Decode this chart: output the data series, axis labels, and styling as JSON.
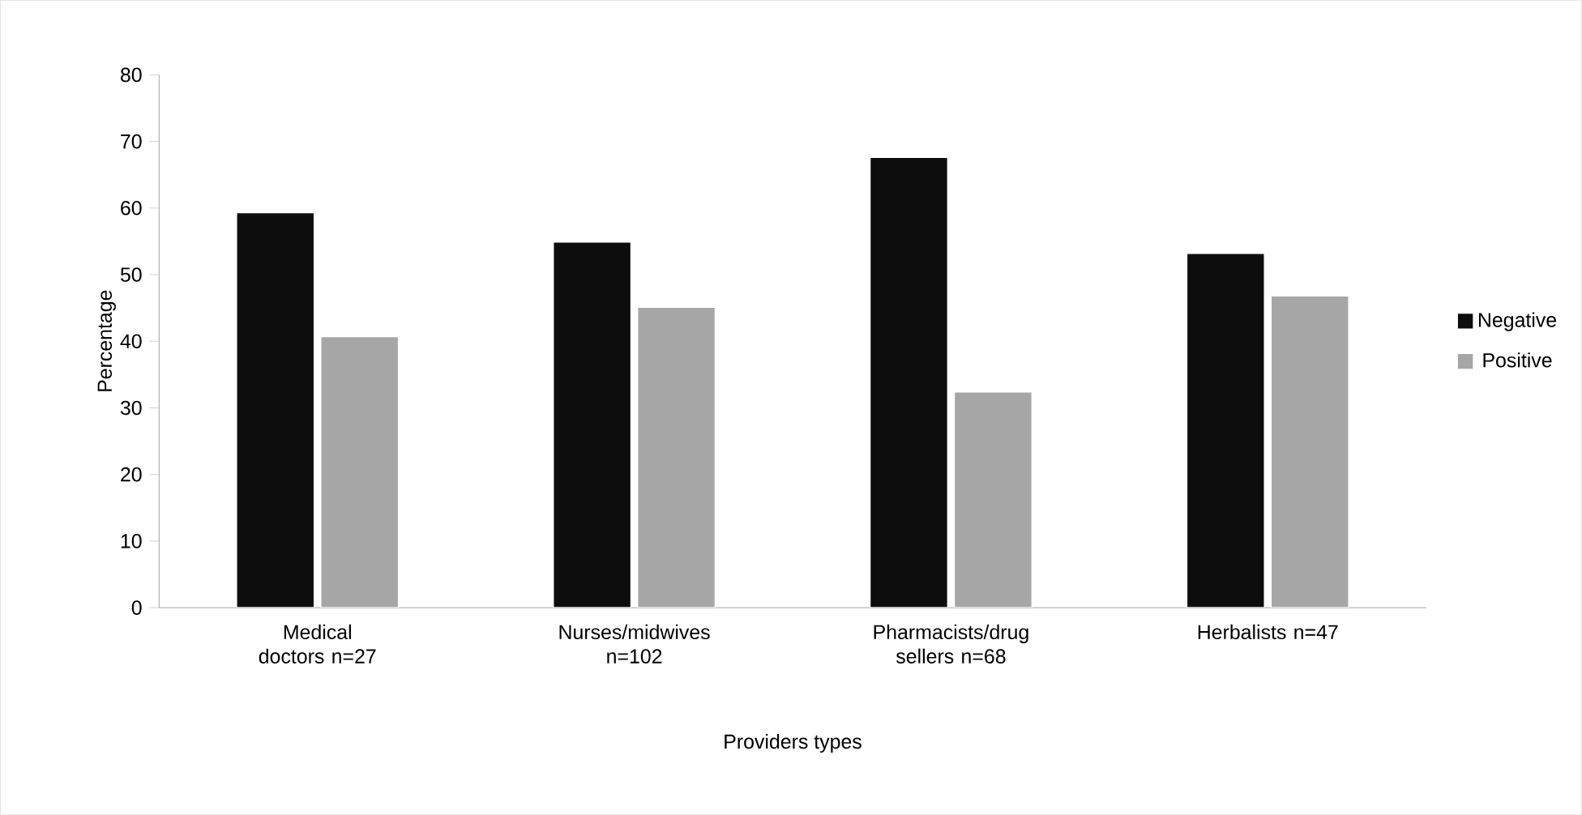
{
  "chart_data": {
    "type": "bar",
    "xlabel": "Providers types",
    "ylabel": "Percentage",
    "categories": [
      "Medical doctors n=27",
      "Nurses/midwives n=102",
      "Pharmacists/drug sellers n=68",
      "Herbalists n=47"
    ],
    "series": [
      {
        "name": "Negative",
        "color": "#0d0d0d",
        "values": [
          59.3,
          54.9,
          67.6,
          53.2
        ]
      },
      {
        "name": "Positive",
        "color": "#a6a6a6",
        "values": [
          40.7,
          45.1,
          32.4,
          46.8
        ]
      }
    ],
    "ylim": [
      0,
      80
    ],
    "yticks": [
      0,
      10,
      20,
      30,
      40,
      50,
      60,
      70,
      80
    ],
    "grid": false,
    "legend": "right"
  }
}
